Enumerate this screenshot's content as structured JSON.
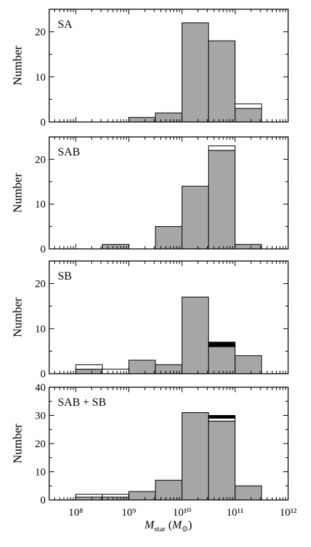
{
  "colors": {
    "bar_fill": "#a6a6a6",
    "open_fill": "#ffffff",
    "black_fill": "#000000",
    "stroke": "#000000"
  },
  "figure": {
    "xlabel_main": "M",
    "xlabel_sub": "star",
    "xlabel_unit_open": " (M",
    "xlabel_unit_sub": "⊙",
    "xlabel_unit_close": ")"
  },
  "chart_data": [
    {
      "type": "bar",
      "panel_label": "SA",
      "ylabel": "Number",
      "xscale": "log",
      "xlim": [
        7.5,
        12
      ],
      "ylim": [
        0,
        25
      ],
      "yticks": [
        0,
        10,
        20
      ],
      "xticks": [
        8,
        9,
        10,
        11,
        12
      ],
      "x_tick_labels": [
        "10⁸",
        "10⁹",
        "10¹⁰",
        "10¹¹",
        "10¹²"
      ],
      "show_x_tick_labels": false,
      "bin_edges": [
        8.0,
        8.5,
        9.0,
        9.5,
        10.0,
        10.5,
        11.0,
        11.5
      ],
      "series": [
        {
          "style": "gray",
          "values": [
            0,
            0,
            1,
            2,
            22,
            18,
            3
          ]
        },
        {
          "style": "open",
          "values": [
            0,
            0,
            0,
            0,
            0,
            0,
            1
          ]
        }
      ]
    },
    {
      "type": "bar",
      "panel_label": "SAB",
      "ylabel": "Number",
      "xscale": "log",
      "xlim": [
        7.5,
        12
      ],
      "ylim": [
        0,
        25
      ],
      "yticks": [
        0,
        10,
        20
      ],
      "xticks": [
        8,
        9,
        10,
        11,
        12
      ],
      "x_tick_labels": [
        "10⁸",
        "10⁹",
        "10¹⁰",
        "10¹¹",
        "10¹²"
      ],
      "show_x_tick_labels": false,
      "bin_edges": [
        8.0,
        8.5,
        9.0,
        9.5,
        10.0,
        10.5,
        11.0,
        11.5
      ],
      "series": [
        {
          "style": "gray",
          "values": [
            0,
            1,
            0,
            5,
            14,
            22,
            1
          ]
        },
        {
          "style": "open",
          "values": [
            0,
            0,
            0,
            0,
            0,
            1,
            0
          ]
        }
      ]
    },
    {
      "type": "bar",
      "panel_label": "SB",
      "ylabel": "Number",
      "xscale": "log",
      "xlim": [
        7.5,
        12
      ],
      "ylim": [
        0,
        25
      ],
      "yticks": [
        0,
        10,
        20
      ],
      "xticks": [
        8,
        9,
        10,
        11,
        12
      ],
      "x_tick_labels": [
        "10⁸",
        "10⁹",
        "10¹⁰",
        "10¹¹",
        "10¹²"
      ],
      "show_x_tick_labels": false,
      "bin_edges": [
        8.0,
        8.5,
        9.0,
        9.5,
        10.0,
        10.5,
        11.0,
        11.5
      ],
      "series": [
        {
          "style": "gray",
          "values": [
            1,
            0,
            3,
            2,
            17,
            6,
            4
          ]
        },
        {
          "style": "open",
          "values": [
            1,
            1,
            0,
            0,
            0,
            0,
            0
          ]
        },
        {
          "style": "black",
          "values": [
            0,
            0,
            0,
            0,
            0,
            1,
            0
          ]
        }
      ]
    },
    {
      "type": "bar",
      "panel_label": "SAB + SB",
      "ylabel": "Number",
      "xscale": "log",
      "xlim": [
        7.5,
        12
      ],
      "ylim": [
        0,
        40
      ],
      "yticks": [
        0,
        10,
        20,
        30,
        40
      ],
      "xticks": [
        8,
        9,
        10,
        11,
        12
      ],
      "x_tick_labels": [
        "10⁸",
        "10⁹",
        "10¹⁰",
        "10¹¹",
        "10¹²"
      ],
      "show_x_tick_labels": true,
      "bin_edges": [
        8.0,
        8.5,
        9.0,
        9.5,
        10.0,
        10.5,
        11.0,
        11.5
      ],
      "series": [
        {
          "style": "gray",
          "values": [
            1,
            1,
            3,
            7,
            31,
            28,
            5
          ]
        },
        {
          "style": "open",
          "values": [
            1,
            1,
            0,
            0,
            0,
            1,
            0
          ]
        },
        {
          "style": "black",
          "values": [
            0,
            0,
            0,
            0,
            0,
            1,
            0
          ]
        }
      ]
    }
  ]
}
